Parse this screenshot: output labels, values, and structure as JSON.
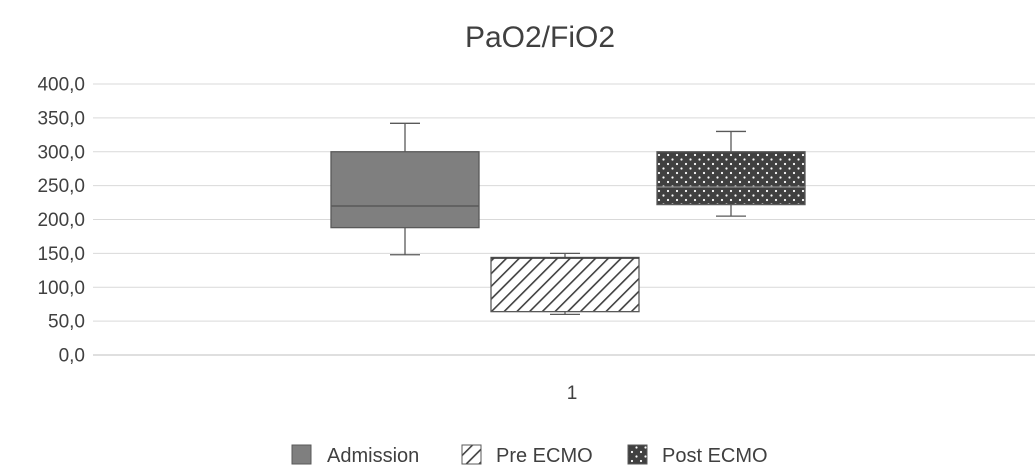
{
  "chart_data": {
    "type": "box",
    "title": "PaO2/FiO2",
    "xlabel": "",
    "ylabel": "",
    "categories": [
      "1"
    ],
    "ylim": [
      0,
      400
    ],
    "ytick_step": 50,
    "ytick_labels": [
      "0,0",
      "50,0",
      "100,0",
      "150,0",
      "200,0",
      "250,0",
      "300,0",
      "350,0",
      "400,0"
    ],
    "grid": true,
    "legend_position": "bottom",
    "series": [
      {
        "name": "Admission",
        "pattern": "solid",
        "color": "#7f7f7f",
        "min": 148,
        "q1": 188,
        "median": 220,
        "q3": 300,
        "max": 342
      },
      {
        "name": "Pre ECMO",
        "pattern": "diagonal-hatch",
        "color": "#595959",
        "min": 60,
        "q1": 64,
        "median": 143,
        "q3": 144,
        "max": 150
      },
      {
        "name": "Post ECMO",
        "pattern": "dots",
        "color": "#404040",
        "min": 205,
        "q1": 222,
        "median": 248,
        "q3": 300,
        "max": 330
      }
    ]
  }
}
